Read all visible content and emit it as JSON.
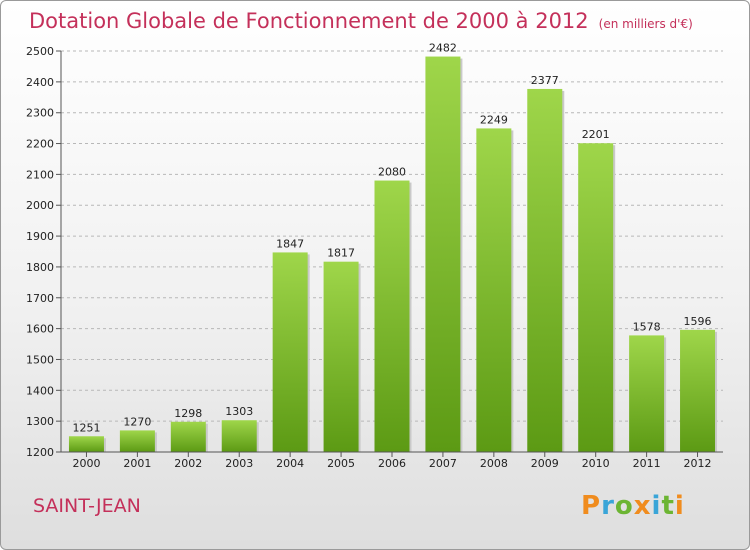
{
  "chart_data": {
    "type": "bar",
    "title": "Dotation Globale de Fonctionnement de 2000 à 2012",
    "subtitle": "(en milliers d'€)",
    "categories": [
      "2000",
      "2001",
      "2002",
      "2003",
      "2004",
      "2005",
      "2006",
      "2007",
      "2008",
      "2009",
      "2010",
      "2011",
      "2012"
    ],
    "values": [
      1251,
      1270,
      1298,
      1303,
      1847,
      1817,
      2080,
      2482,
      2249,
      2377,
      2201,
      1578,
      1596
    ],
    "ylim": [
      1200,
      2500
    ],
    "yticks": [
      1200,
      1300,
      1400,
      1500,
      1600,
      1700,
      1800,
      1900,
      2000,
      2100,
      2200,
      2300,
      2400,
      2500
    ],
    "grid": "dashed-horizontal",
    "bar_color": "#7cba2a"
  },
  "footer": {
    "place": "SAINT-JEAN",
    "logo": [
      {
        "ch": "P",
        "color": "#f08c1e"
      },
      {
        "ch": "r",
        "color": "#3aa5d8"
      },
      {
        "ch": "o",
        "color": "#6cb533"
      },
      {
        "ch": "x",
        "color": "#f08c1e"
      },
      {
        "ch": "i",
        "color": "#3aa5d8"
      },
      {
        "ch": "t",
        "color": "#6cb533"
      },
      {
        "ch": "i",
        "color": "#f08c1e"
      }
    ]
  }
}
